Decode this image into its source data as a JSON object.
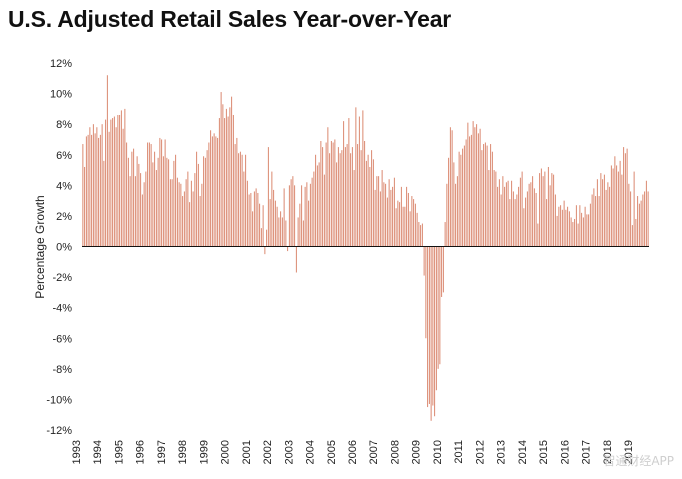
{
  "chart_data": {
    "type": "bar",
    "title": "U.S. Adjusted Retail Sales Year-over-Year",
    "ylabel": "Percentage Growth",
    "xlabel": "",
    "ylim": [
      -12,
      12
    ],
    "yticks": [
      "12%",
      "10%",
      "8%",
      "6%",
      "4%",
      "2%",
      "0%",
      "-2%",
      "-4%",
      "-6%",
      "-8%",
      "-10%",
      "-12%"
    ],
    "ytick_values": [
      12,
      10,
      8,
      6,
      4,
      2,
      0,
      -2,
      -4,
      -6,
      -8,
      -10,
      -12
    ],
    "year_labels": [
      "1993",
      "1994",
      "1995",
      "1996",
      "1997",
      "1998",
      "1999",
      "2000",
      "2001",
      "2002",
      "2003",
      "2004",
      "2005",
      "2006",
      "2007",
      "2008",
      "2009",
      "2010",
      "2011",
      "2012",
      "2013",
      "2014",
      "2015",
      "2016",
      "2017",
      "2018",
      "2019"
    ],
    "bar_color": "#d9836a",
    "grid": false,
    "legend": "none",
    "series": [
      {
        "values": [
          6.7,
          5.2,
          7.2,
          7.3,
          7.8,
          7.3,
          8.0,
          7.4,
          7.8,
          7.1,
          7.3,
          8.0,
          5.6,
          8.3,
          11.2,
          7.5,
          8.3,
          8.4,
          8.5,
          7.8,
          8.6,
          8.6,
          8.9,
          7.7,
          9.0,
          6.8,
          5.8,
          4.6,
          6.2,
          6.4,
          4.6,
          5.9,
          5.4,
          4.8,
          3.4,
          4.2,
          4.9,
          6.8,
          6.8,
          6.7,
          5.5,
          6.2,
          5.0,
          5.8,
          7.1,
          7.0,
          5.9,
          7.0,
          5.8,
          5.7,
          4.4,
          4.4,
          5.6,
          6.0,
          4.5,
          4.2,
          4.1,
          3.3,
          3.6,
          4.4,
          4.9,
          2.9,
          4.3,
          3.6,
          4.8,
          6.2,
          5.4,
          3.3,
          4.1,
          5.9,
          5.8,
          6.3,
          6.8,
          7.6,
          7.2,
          7.4,
          7.2,
          7.1,
          8.4,
          10.1,
          9.3,
          8.4,
          9.0,
          8.5,
          9.1,
          9.8,
          8.6,
          6.7,
          7.1,
          6.1,
          6.2,
          6.0,
          4.9,
          6.0,
          4.3,
          3.4,
          3.5,
          2.3,
          3.6,
          3.8,
          3.5,
          2.8,
          1.2,
          2.7,
          -0.5,
          1.1,
          6.5,
          3.1,
          4.9,
          3.7,
          3.0,
          2.6,
          1.9,
          2.3,
          1.9,
          3.8,
          1.7,
          -0.3,
          4.0,
          4.4,
          4.6,
          4.0,
          -1.7,
          1.9,
          2.8,
          4.0,
          1.7,
          3.9,
          4.2,
          3.0,
          4.1,
          4.5,
          4.9,
          6.0,
          5.3,
          5.5,
          6.9,
          6.5,
          4.7,
          6.8,
          7.8,
          6.1,
          6.9,
          6.8,
          7.0,
          5.5,
          6.5,
          6.1,
          6.3,
          8.2,
          6.5,
          6.7,
          8.4,
          6.1,
          6.5,
          5.0,
          9.1,
          6.7,
          8.5,
          6.3,
          8.9,
          6.9,
          5.6,
          6.0,
          5.2,
          6.3,
          5.7,
          3.7,
          4.6,
          4.6,
          3.6,
          5.0,
          4.2,
          4.1,
          3.2,
          4.4,
          3.7,
          3.9,
          4.5,
          2.5,
          3.0,
          2.9,
          3.9,
          2.6,
          2.6,
          3.9,
          3.5,
          2.3,
          3.3,
          3.1,
          2.8,
          2.2,
          1.6,
          1.4,
          1.5,
          -1.9,
          -6.0,
          -10.5,
          -10.3,
          -11.4,
          -10.4,
          -11.1,
          -9.4,
          -8.0,
          -7.7,
          -3.3,
          -3.0,
          1.6,
          4.1,
          5.8,
          7.8,
          7.6,
          5.5,
          4.1,
          4.6,
          6.2,
          6.0,
          6.4,
          6.6,
          7.0,
          8.1,
          7.2,
          7.3,
          8.2,
          7.8,
          8.0,
          7.4,
          7.7,
          6.3,
          6.7,
          6.8,
          6.6,
          5.0,
          6.7,
          6.2,
          5.0,
          4.9,
          3.9,
          4.4,
          3.4,
          4.6,
          3.9,
          4.2,
          4.3,
          3.1,
          4.3,
          3.6,
          3.1,
          3.4,
          3.9,
          4.5,
          4.9,
          2.5,
          3.2,
          3.6,
          4.1,
          4.2,
          4.6,
          3.8,
          3.5,
          1.5,
          4.8,
          5.1,
          4.6,
          4.9,
          3.1,
          5.2,
          4.0,
          4.8,
          4.7,
          3.4,
          2.0,
          2.6,
          2.7,
          2.4,
          3.0,
          2.4,
          2.6,
          2.3,
          1.9,
          1.6,
          1.8,
          2.7,
          1.5,
          2.7,
          2.2,
          1.9,
          2.6,
          2.1,
          2.1,
          2.8,
          3.4,
          3.8,
          3.3,
          4.4,
          3.3,
          4.8,
          4.4,
          4.7,
          3.7,
          4.2,
          3.9,
          5.3,
          5.1,
          5.9,
          5.3,
          4.9,
          5.6,
          4.7,
          6.5,
          6.1,
          6.4,
          4.1,
          3.6,
          1.4,
          4.9,
          1.8,
          3.3,
          2.8,
          3.0,
          3.4,
          3.6,
          4.3,
          3.6
        ]
      }
    ]
  },
  "watermark_text": "智通财经APP"
}
